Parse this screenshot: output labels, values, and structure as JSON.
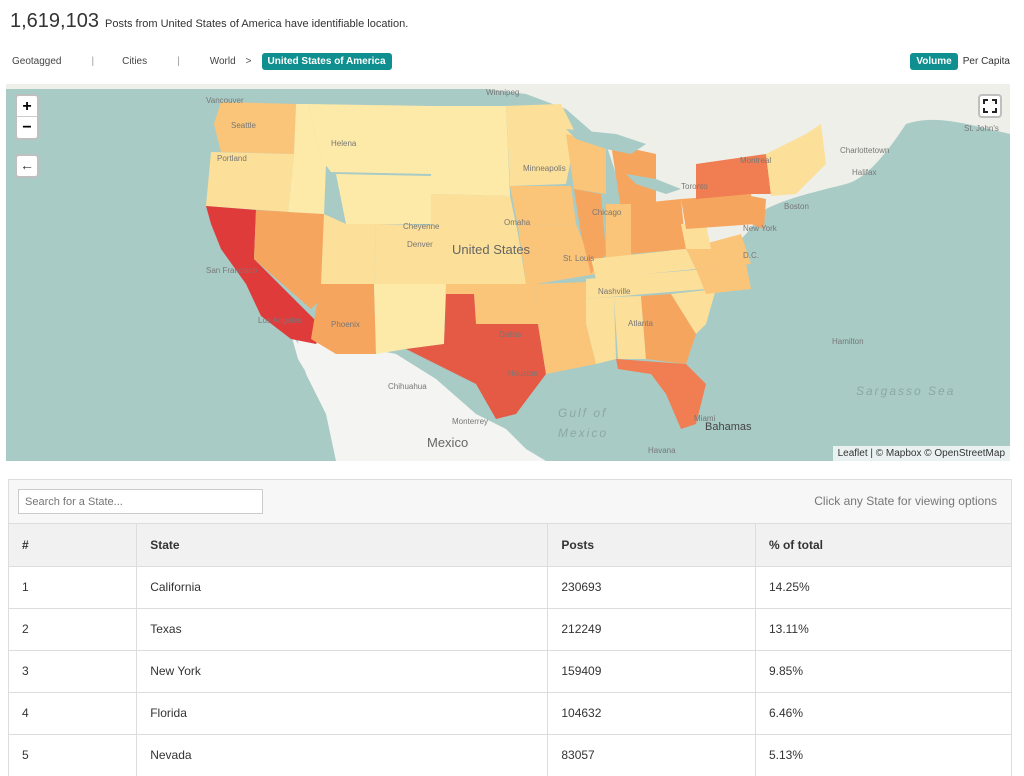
{
  "summary": {
    "count": "1,619,103",
    "description": "Posts from United States of America have identifiable location."
  },
  "nav": {
    "geotagged": "Geotagged",
    "cities": "Cities",
    "world": "World",
    "separator": "|",
    "gt": ">",
    "current": "United States of America",
    "volume": "Volume",
    "per_capita": "Per Capita"
  },
  "map": {
    "zoom_in": "+",
    "zoom_out": "−",
    "back": "←",
    "attribution": "Leaflet | © Mapbox © OpenStreetMap",
    "labels": {
      "winnipeg": "Winnipeg",
      "vancouver": "Vancouver",
      "seattle": "Seattle",
      "portland": "Portland",
      "helena": "Helena",
      "minneapolis": "Minneapolis",
      "montreal": "Montreal",
      "toronto": "Toronto",
      "charlottetown": "Charlottetown",
      "halifax": "Halifax",
      "st_johns": "St. John's",
      "cheyenne": "Cheyenne",
      "omaha": "Omaha",
      "denver": "Denver",
      "united_states": "United States",
      "chicago": "Chicago",
      "st_louis": "St. Louis",
      "boston": "Boston",
      "new_york": "New York",
      "dc": "D.C.",
      "san_francisco": "San Francisco",
      "nashville": "Nashville",
      "los_angeles": "Los Angeles",
      "phoenix": "Phoenix",
      "dallas": "Dallas",
      "atlanta": "Atlanta",
      "hamilton": "Hamilton",
      "houston": "Houston",
      "chihuahua": "Chihuahua",
      "sargasso": "Sargasso Sea",
      "gulf": "Gulf of",
      "mexico_gulf": "Mexico",
      "monterrey": "Monterrey",
      "mexico": "Mexico",
      "miami": "Miami",
      "bahamas": "Bahamas",
      "havana": "Havana"
    },
    "colors": {
      "water": "#a9cbc6",
      "land": "#efefe9",
      "mexico_land": "#f4f4f2",
      "high": "#e03b3b",
      "high2": "#e55a45",
      "mid_high": "#f07e52",
      "mid": "#f6a55e",
      "mid_low": "#fac579",
      "low": "#fcdf99",
      "lowest": "#fdeaa9"
    }
  },
  "table": {
    "search_placeholder": "Search for a State...",
    "hint": "Click any State for viewing options",
    "headers": [
      "#",
      "State",
      "Posts",
      "% of total"
    ],
    "rows": [
      [
        "1",
        "California",
        "230693",
        "14.25%"
      ],
      [
        "2",
        "Texas",
        "212249",
        "13.11%"
      ],
      [
        "3",
        "New York",
        "159409",
        "9.85%"
      ],
      [
        "4",
        "Florida",
        "104632",
        "6.46%"
      ],
      [
        "5",
        "Nevada",
        "83057",
        "5.13%"
      ]
    ]
  }
}
